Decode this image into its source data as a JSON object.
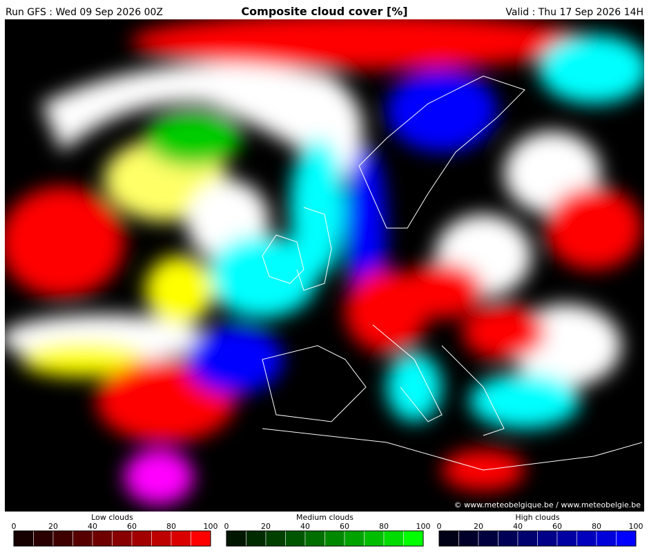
{
  "header": {
    "run": "Run GFS : Wed 09 Sep 2026 00Z",
    "title": "Composite cloud cover [%]",
    "valid": "Valid : Thu 17 Sep 2026 14H"
  },
  "copyright": "© www.meteobelgique.be / www.meteobelgie.be",
  "legends": [
    {
      "name": "Low clouds",
      "ticks": [
        0,
        20,
        40,
        60,
        80,
        100
      ],
      "colors": [
        "#160000",
        "#2a0000",
        "#3f0000",
        "#560000",
        "#6e0000",
        "#880000",
        "#a20000",
        "#bd0000",
        "#db0000",
        "#ff0000"
      ]
    },
    {
      "name": "Medium clouds",
      "ticks": [
        0,
        20,
        40,
        60,
        80,
        100
      ],
      "colors": [
        "#001600",
        "#002a00",
        "#003f00",
        "#005600",
        "#006e00",
        "#008800",
        "#00a200",
        "#00bd00",
        "#00db00",
        "#00ff00"
      ]
    },
    {
      "name": "High clouds",
      "ticks": [
        0,
        20,
        40,
        60,
        80,
        100
      ],
      "colors": [
        "#000016",
        "#00002a",
        "#00003f",
        "#000056",
        "#00006e",
        "#000088",
        "#0000a2",
        "#0000bd",
        "#0000db",
        "#0000ff"
      ]
    }
  ]
}
